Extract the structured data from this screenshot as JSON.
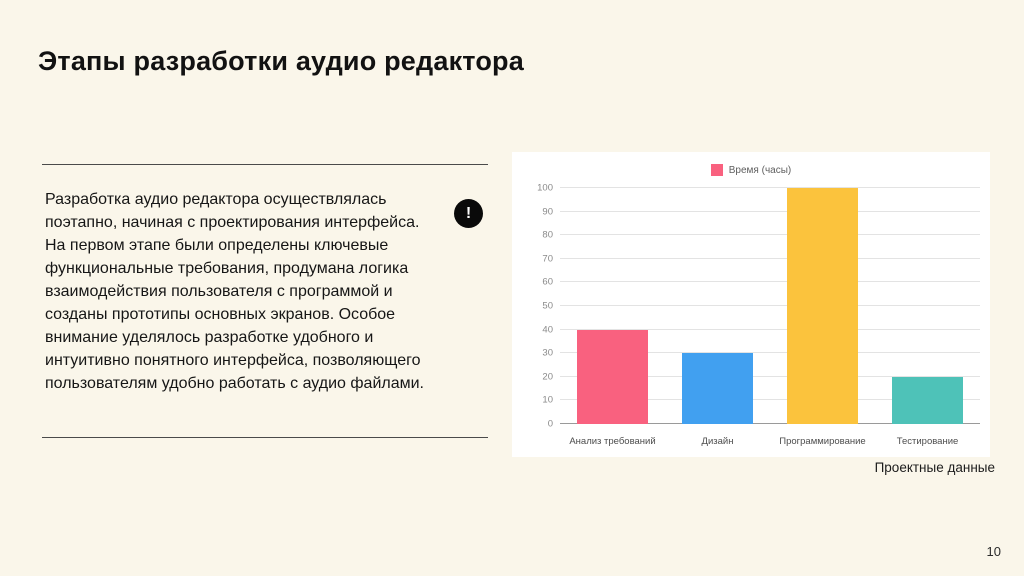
{
  "slide": {
    "title": "Этапы разработки аудио редактора",
    "body_text": "Разработка аудио редактора осуществлялась поэтапно, начиная с проектирования интерфейса. На первом этапе были определены ключевые функциональные требования, продумана логика взаимодействия пользователя с программой и созданы прототипы основных экранов. Особое внимание уделялось разработке удобного и интуитивно понятного интерфейса, позволяющего пользователям удобно работать с аудио файлами.",
    "alert_icon_glyph": "!",
    "caption": "Проектные данные",
    "page_number": "10"
  },
  "chart_data": {
    "type": "bar",
    "title": "",
    "categories": [
      "Анализ требований",
      "Дизайн",
      "Программирование",
      "Тестирование"
    ],
    "values": [
      40,
      30,
      100,
      20
    ],
    "bar_colors": [
      "#F9617F",
      "#41A0F0",
      "#FBC33D",
      "#4EC2B8"
    ],
    "legend": [
      {
        "label": "Время (часы)",
        "color": "#F9617F"
      }
    ],
    "legend_position": "top",
    "xlabel": "",
    "ylabel": "",
    "ylim": [
      0,
      100
    ],
    "ytick_step": 10,
    "grid": true,
    "background": "#ffffff"
  },
  "colors": {
    "slide_background": "#FAF6EA",
    "title_text": "#121212",
    "body_text": "#161616",
    "gridline": "#e3e3e3",
    "axis_tick_text": "#8a8a8a"
  }
}
